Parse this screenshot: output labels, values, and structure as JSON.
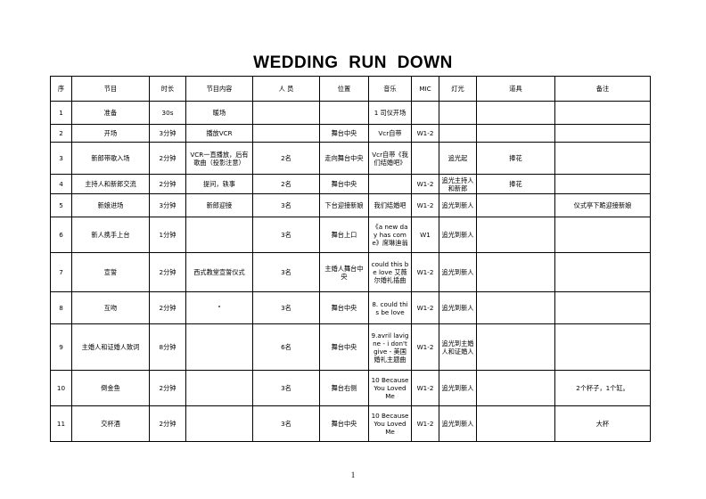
{
  "title": "WEDDING  RUN  DOWN",
  "headers": [
    "序",
    "节目",
    "时长",
    "节目内容",
    "人 员",
    "位置",
    "音乐",
    "MIC",
    "灯光",
    "道具",
    "备注"
  ],
  "rows": [
    [
      "1",
      "准备",
      "30s",
      "暖场",
      "",
      "",
      "1 司仪开场",
      "",
      "",
      "",
      ""
    ],
    [
      "2",
      "开场",
      "3分钟",
      "播放VCR",
      "",
      "舞台中央",
      "Vcr自带",
      "W1-2",
      "",
      "",
      ""
    ],
    [
      "3",
      "新郎带歌入场",
      "2分钟",
      "VCR一直播放，后有歌曲（投影注意）",
      "2名",
      "走向舞台中央",
      "Vcr自带《我们结婚吧》",
      "",
      "追光起",
      "捧花",
      ""
    ],
    [
      "4",
      "主持人和新郎交流",
      "2分钟",
      "提问，轶事",
      "2名",
      "舞台中央",
      "",
      "W1-2",
      "追光主持人和新郎",
      "捧花",
      ""
    ],
    [
      "5",
      "新娘进场",
      "3分钟",
      "新郎迎接",
      "3名",
      "下台迎接新娘",
      "我们结婚吧",
      "W1-2",
      "追光到新人",
      "",
      "仪式亭下跪迎接新娘"
    ],
    [
      "6",
      "新人携手上台",
      "1分钟",
      "",
      "3名",
      "舞台上口",
      "《a new day has come》席琳迪翁",
      "W1",
      "追光到新人",
      "",
      ""
    ],
    [
      "7",
      "宣誓",
      "2分钟",
      "西式教堂宣誓仪式",
      "3名",
      "主婚人舞台中央",
      "could this be love 艾薇尔婚礼插曲",
      "W1-2",
      "追光到新人",
      "",
      ""
    ],
    [
      "8",
      "互吻",
      "2分钟",
      "\"",
      "3名",
      "舞台中央",
      "8. could this be love",
      "W1-2",
      "追光到新人",
      "",
      ""
    ],
    [
      "9",
      "主婚人和证婚人致词",
      "8分钟",
      "",
      "6名",
      "舞台中央",
      "9.avril lavigne - i don't give - 美国婚礼主题曲",
      "W1-2",
      "追光到主婚人和证婚人",
      "",
      ""
    ],
    [
      "10",
      "倒金鱼",
      "2分钟",
      "",
      "3名",
      "舞台右侧",
      "10 Because You Loved Me",
      "W1-2",
      "追光到新人",
      "",
      "2个杯子，1个缸。"
    ],
    [
      "11",
      "交杯酒",
      "2分钟",
      "",
      "3名",
      "舞台中央",
      "10 Because You Loved Me",
      "W1-2",
      "追光到新人",
      "",
      "大杯"
    ]
  ],
  "page_number": "1"
}
